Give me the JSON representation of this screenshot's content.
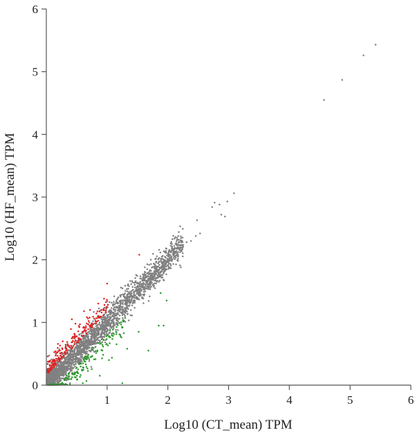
{
  "chart_data": {
    "type": "scatter",
    "title": "",
    "xlabel": "Log10 (CT_mean) TPM",
    "ylabel": "Log10 (HF_mean) TPM",
    "xlim": [
      0,
      6
    ],
    "ylim": [
      0,
      6
    ],
    "x_ticks": [
      "1",
      "2",
      "3",
      "4",
      "5",
      "6"
    ],
    "y_ticks": [
      "0",
      "1",
      "2",
      "3",
      "4",
      "5",
      "6"
    ],
    "grid": false,
    "legend": "none",
    "colors": {
      "ns": "#808080",
      "up": "#e02020",
      "down": "#2a9a2a",
      "axis": "#555555"
    },
    "outliers": [
      {
        "x": 5.42,
        "y": 5.43
      },
      {
        "x": 5.22,
        "y": 5.26
      },
      {
        "x": 4.87,
        "y": 4.87
      },
      {
        "x": 4.57,
        "y": 4.55
      },
      {
        "x": 3.09,
        "y": 3.06
      },
      {
        "x": 2.98,
        "y": 2.93
      },
      {
        "x": 2.77,
        "y": 2.91
      },
      {
        "x": 2.85,
        "y": 2.88
      },
      {
        "x": 2.73,
        "y": 2.84
      },
      {
        "x": 2.88,
        "y": 2.72
      },
      {
        "x": 2.94,
        "y": 2.69
      },
      {
        "x": 2.48,
        "y": 2.63
      },
      {
        "x": 2.53,
        "y": 2.42
      },
      {
        "x": 2.46,
        "y": 2.38
      },
      {
        "x": 2.38,
        "y": 2.3
      },
      {
        "x": 2.31,
        "y": 2.28
      },
      {
        "x": 2.25,
        "y": 2.22
      }
    ],
    "up_extra": [
      {
        "x": 1.53,
        "y": 2.08
      },
      {
        "x": 1.0,
        "y": 1.62
      },
      {
        "x": 0.42,
        "y": 1.05
      },
      {
        "x": 0.48,
        "y": 0.98
      },
      {
        "x": 0.62,
        "y": 1.18
      },
      {
        "x": 0.72,
        "y": 1.2
      },
      {
        "x": 0.95,
        "y": 1.38
      }
    ],
    "down_extra": [
      {
        "x": 1.98,
        "y": 1.35
      },
      {
        "x": 1.88,
        "y": 1.47
      },
      {
        "x": 1.93,
        "y": 0.95
      },
      {
        "x": 1.85,
        "y": 0.95
      },
      {
        "x": 1.33,
        "y": 0.58
      },
      {
        "x": 1.03,
        "y": 0.4
      },
      {
        "x": 1.25,
        "y": 0.03
      },
      {
        "x": 0.88,
        "y": 0.15
      },
      {
        "x": 0.6,
        "y": 0.03
      },
      {
        "x": 1.68,
        "y": 0.55
      },
      {
        "x": 1.52,
        "y": 0.85
      }
    ],
    "cloud": {
      "seed": 42,
      "bulk_count": 2600,
      "up_count": 190,
      "down_count": 210,
      "x_range": [
        0.02,
        2.25
      ],
      "spread": 0.09
    }
  }
}
